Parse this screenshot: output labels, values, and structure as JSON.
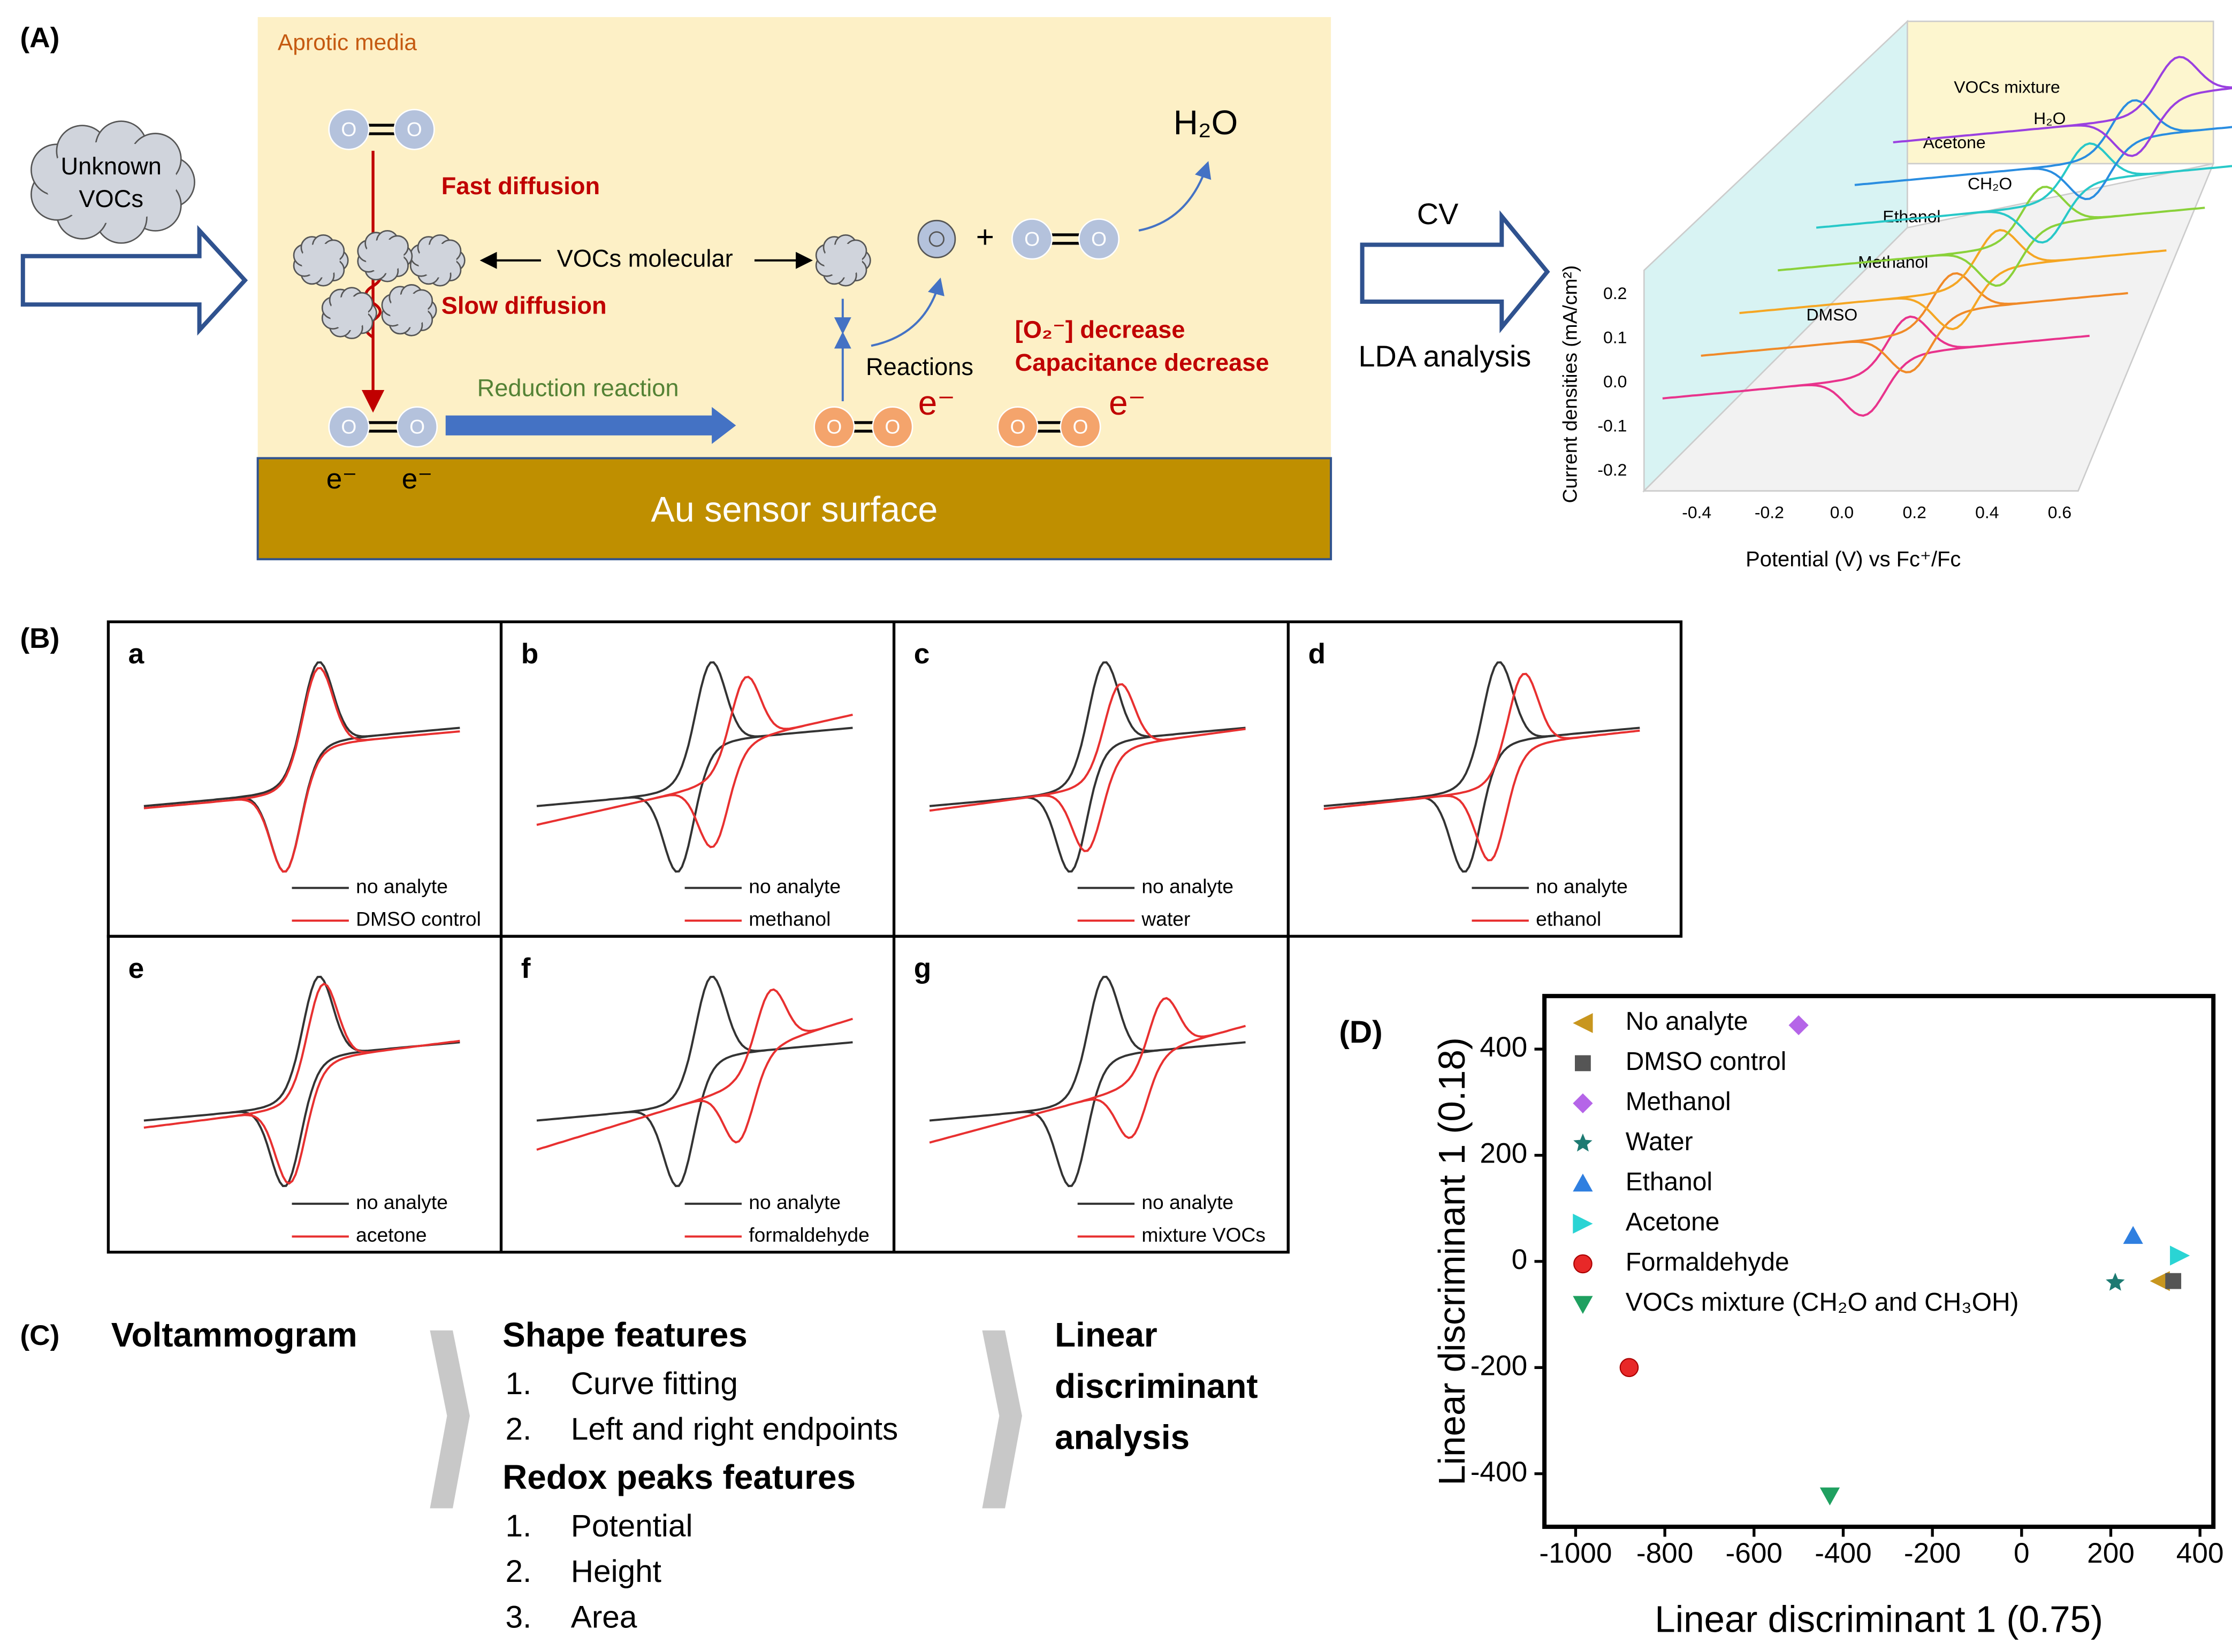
{
  "panel_a": {
    "label": "(A)",
    "media": "Aprotic media",
    "cloud": [
      "Unknown",
      "VOCs"
    ],
    "atom": "O",
    "fast": "Fast diffusion",
    "slow": "Slow diffusion",
    "vocs": "VOCs molecular",
    "reduction": "Reduction reaction",
    "reactions": "Reactions",
    "electron": "e⁻",
    "decrease": [
      "[O₂⁻] decrease",
      "Capacitance decrease"
    ],
    "product": "H₂O",
    "surface": "Au sensor surface",
    "arrow_top": "CV",
    "arrow_bottom": "LDA analysis",
    "cv_plot": {
      "ylabel": "Current densities (mA/cm²)",
      "xlabel": "Potential (V) vs Fc⁺/Fc",
      "xticks": [
        "-0.4",
        "-0.2",
        "0.0",
        "0.2",
        "0.4",
        "0.6"
      ],
      "yticks": [
        "0.2",
        "0.1",
        "0.0",
        "-0.1",
        "-0.2"
      ],
      "curves": [
        {
          "name": "DMSO",
          "color": "#e8338c"
        },
        {
          "name": "Methanol",
          "color": "#f08a28"
        },
        {
          "name": "Ethanol",
          "color": "#f5a623"
        },
        {
          "name": "CH₂O",
          "color": "#8ad13a"
        },
        {
          "name": "Acetone",
          "color": "#28c8c8"
        },
        {
          "name": "H₂O",
          "color": "#2a8de0"
        },
        {
          "name": "VOCs mixture",
          "color": "#9a40e0"
        }
      ]
    }
  },
  "panel_b": {
    "label": "(B)",
    "plots": [
      {
        "letter": "a",
        "legend": [
          "no analyte",
          "DMSO control"
        ]
      },
      {
        "letter": "b",
        "legend": [
          "no analyte",
          "methanol"
        ]
      },
      {
        "letter": "c",
        "legend": [
          "no analyte",
          "water"
        ]
      },
      {
        "letter": "d",
        "legend": [
          "no analyte",
          "ethanol"
        ]
      },
      {
        "letter": "e",
        "legend": [
          "no analyte",
          "acetone"
        ]
      },
      {
        "letter": "f",
        "legend": [
          "no analyte",
          "formaldehyde"
        ]
      },
      {
        "letter": "g",
        "legend": [
          "no analyte",
          "mixture VOCs"
        ]
      }
    ]
  },
  "panel_c": {
    "label": "(C)",
    "start": "Voltammogram",
    "shape": {
      "title": "Shape features",
      "items": [
        {
          "num": "1.",
          "text": "Curve fitting"
        },
        {
          "num": "2.",
          "text": "Left and right endpoints"
        }
      ]
    },
    "redox": {
      "title": "Redox peaks features",
      "items": [
        {
          "num": "1.",
          "text": "Potential"
        },
        {
          "num": "2.",
          "text": "Height"
        },
        {
          "num": "3.",
          "text": "Area"
        }
      ]
    },
    "end": [
      "Linear",
      "discriminant",
      "analysis"
    ]
  },
  "chart_data": {
    "type": "scatter",
    "label": "(D)",
    "xlabel": "Linear discriminant 1 (0.75)",
    "ylabel": "Linear discriminant 1 (0.18)",
    "xlim": [
      -1070,
      430
    ],
    "ylim": [
      -500,
      500
    ],
    "xticks": [
      -1000,
      -800,
      -600,
      -400,
      -200,
      0,
      200,
      400
    ],
    "yticks": [
      -400,
      -200,
      0,
      200,
      400
    ],
    "series": [
      {
        "name": "No analyte",
        "color": "#c8961e",
        "marker": "triangle-left",
        "x": [
          310
        ],
        "y": [
          -37
        ]
      },
      {
        "name": "DMSO control",
        "color": "#555555",
        "marker": "square",
        "x": [
          340
        ],
        "y": [
          -37
        ]
      },
      {
        "name": "Methanol",
        "color": "#b565e8",
        "marker": "diamond",
        "x": [
          -500
        ],
        "y": [
          445
        ]
      },
      {
        "name": "Water",
        "color": "#1d7a72",
        "marker": "star",
        "x": [
          210
        ],
        "y": [
          -40
        ]
      },
      {
        "name": "Ethanol",
        "color": "#2f7fe0",
        "marker": "triangle-up",
        "x": [
          250
        ],
        "y": [
          48
        ]
      },
      {
        "name": "Acetone",
        "color": "#2ad4d4",
        "marker": "triangle-right",
        "x": [
          355
        ],
        "y": [
          11
        ]
      },
      {
        "name": "Formaldehyde",
        "color": "#e82828",
        "marker": "circle",
        "x": [
          -880
        ],
        "y": [
          -200
        ]
      },
      {
        "name": "VOCs mixture (CH₂O and CH₃OH)",
        "color": "#1fa060",
        "marker": "triangle-down",
        "x": [
          -430
        ],
        "y": [
          -441
        ]
      }
    ]
  }
}
